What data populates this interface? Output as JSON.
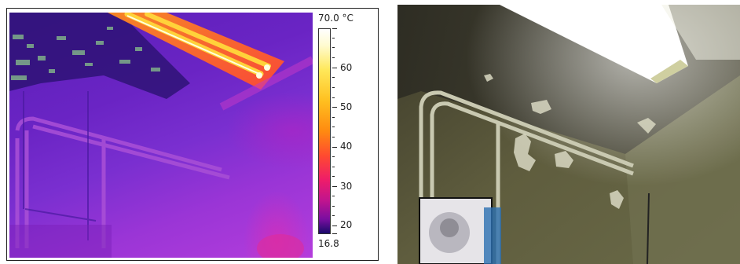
{
  "thermal": {
    "scale": {
      "max_label": "70.0 °C",
      "min_label": "16.8",
      "tick_labels": [
        "60",
        "50",
        "40",
        "30",
        "20"
      ]
    },
    "colors": {
      "hot": "#ffd23a",
      "warm": "#ff5a20",
      "mid": "#d0209a",
      "cool": "#5a1fb8"
    }
  },
  "photo": {
    "colors": {
      "wall": "#5b5a3c",
      "pipe": "#c9c9b1",
      "lamp": "#ffffff"
    }
  }
}
